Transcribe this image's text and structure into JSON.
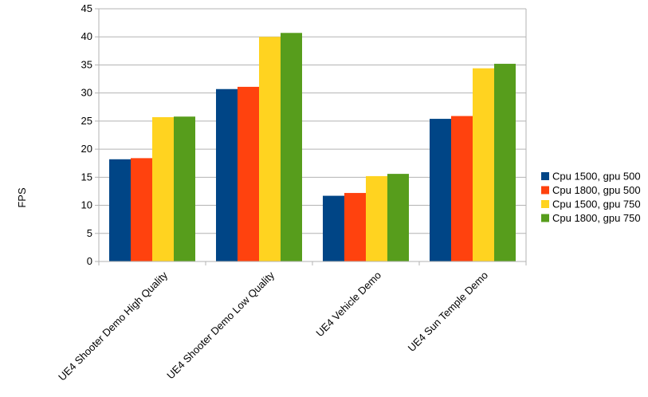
{
  "chart_data": {
    "type": "bar",
    "title": "",
    "xlabel": "",
    "ylabel": "FPS",
    "ylim": [
      0,
      45
    ],
    "yticks": [
      0,
      5,
      10,
      15,
      20,
      25,
      30,
      35,
      40,
      45
    ],
    "grid": true,
    "legend_position": "right",
    "categories": [
      "UE4 Shooter Demo High Quality",
      "UE4 Shooter Demo Low Quality",
      "UE4 Vehicle Demo",
      "UE4 Sun Temple Demo"
    ],
    "series": [
      {
        "name": "Cpu 1500, gpu 500",
        "color": "#004586",
        "values": [
          18.2,
          30.7,
          11.7,
          25.4
        ]
      },
      {
        "name": "Cpu 1800, gpu 500",
        "color": "#ff420e",
        "values": [
          18.4,
          31.1,
          12.2,
          25.9
        ]
      },
      {
        "name": "Cpu 1500, gpu 750",
        "color": "#ffd320",
        "values": [
          25.7,
          40.0,
          15.2,
          34.4
        ]
      },
      {
        "name": "Cpu 1800, gpu 750",
        "color": "#579d1c",
        "values": [
          25.8,
          40.7,
          15.6,
          35.2
        ]
      }
    ]
  }
}
